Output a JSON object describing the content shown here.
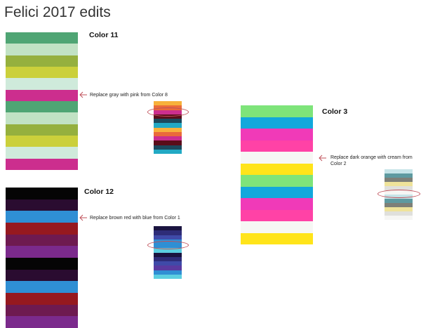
{
  "title": "Felici 2017 edits",
  "palettes": [
    {
      "label": "Color 11",
      "colors": [
        "#4fa574",
        "#c1e2c4",
        "#95b03e",
        "#cbd03b",
        "#cfeadb",
        "#cc2e8e",
        "#4fa574",
        "#c1e2c4",
        "#95b03e",
        "#cbd03b",
        "#cfeadb",
        "#cc2e8e"
      ],
      "note": "Replace gray with pink from Color 8",
      "swatch": [
        "#f7b13b",
        "#ea6a3a",
        "#cc2e8e",
        "#5a0d1a",
        "#1b4a5e",
        "#22a9c4",
        "#f7b13b",
        "#ea6a3a",
        "#cc2e8e",
        "#5a0d1a",
        "#1b4a5e",
        "#22a9c4"
      ]
    },
    {
      "label": "Color 12",
      "colors": [
        "#050505",
        "#2a0c30",
        "#2f8fd4",
        "#96191f",
        "#6e1a50",
        "#7b2a8c",
        "#050505",
        "#2a0c30",
        "#2f8fd4",
        "#96191f",
        "#6e1a50",
        "#7b2a8c"
      ],
      "note": "Replace brown red with blue from Color 1",
      "swatch": [
        "#1a1440",
        "#2e2c78",
        "#3f4aa8",
        "#2f8fd4",
        "#2f8fd4",
        "#5ccfe0",
        "#1a1440",
        "#2e2c78",
        "#3f4aa8",
        "#5a3aa0",
        "#2f8fd4",
        "#5ccfe0"
      ]
    },
    {
      "label": "Color 3",
      "colors": [
        "#7ee47a",
        "#12a8dc",
        "#f03ab8",
        "#ff42a6",
        "#f6f7f4",
        "#ffe41a",
        "#7ee47a",
        "#12a8dc",
        "#f03ab8",
        "#ff42a6",
        "#f6f7f4",
        "#ffe41a"
      ],
      "note_line1": "Replace dark orange with cream from",
      "note_line2": "Color 2",
      "swatch": [
        "#c6e4e8",
        "#5e9aa0",
        "#7e8078",
        "#efe39a",
        "#e0e0dc",
        "#f6f6f4",
        "#c6e4e8",
        "#5e9aa0",
        "#7e8078",
        "#efe39a",
        "#e0e0dc",
        "#f6f6f4"
      ]
    }
  ],
  "accent_color": "#c0505a"
}
